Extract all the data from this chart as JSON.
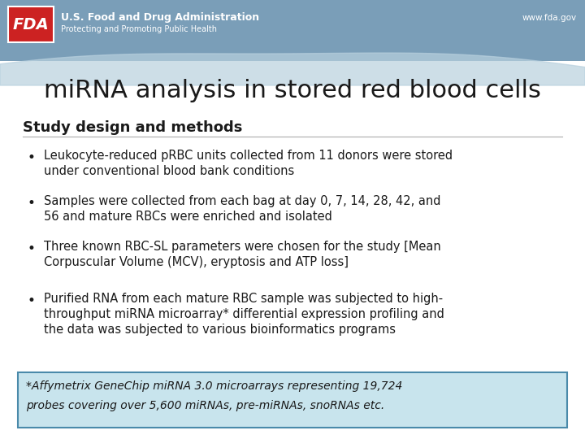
{
  "title": "miRNA analysis in stored red blood cells",
  "subtitle": "Study design and methods",
  "bullets": [
    "Leukocyte-reduced pRBC units collected from 11 donors were stored\nunder conventional blood bank conditions",
    "Samples were collected from each bag at day 0, 7, 14, 28, 42, and\n56 and mature RBCs were enriched and isolated",
    "Three known RBC-SL parameters were chosen for the study [Mean\nCorpuscular Volume (MCV), eryptosis and ATP loss]",
    "Purified RNA from each mature RBC sample was subjected to high-\nthroughput miRNA microarray* differential expression profiling and\nthe data was subjected to various bioinformatics programs"
  ],
  "footnote_line1": "*Affymetrix GeneChip miRNA 3.0 microarrays representing 19,724",
  "footnote_line2": "probes covering over 5,600 miRNAs, pre-miRNAs, snoRNAs etc.",
  "header_bg_color": "#7a9eb8",
  "header_wave_light": "#b8d0de",
  "fda_logo_bg": "#cc2222",
  "footnote_box_bg": "#c8e4ed",
  "footnote_box_border": "#4a8aaa",
  "body_bg": "#ffffff",
  "title_color": "#1a1a1a",
  "subtitle_color": "#1a1a1a",
  "bullet_color": "#1a1a1a",
  "footnote_color": "#1a1a1a",
  "header_text_color": "#ffffff",
  "url_color": "#ffffff",
  "header_fda_text": "U.S. Food and Drug Administration",
  "header_subtitle_text": "Protecting and Promoting Public Health",
  "header_url": "www.fda.gov"
}
